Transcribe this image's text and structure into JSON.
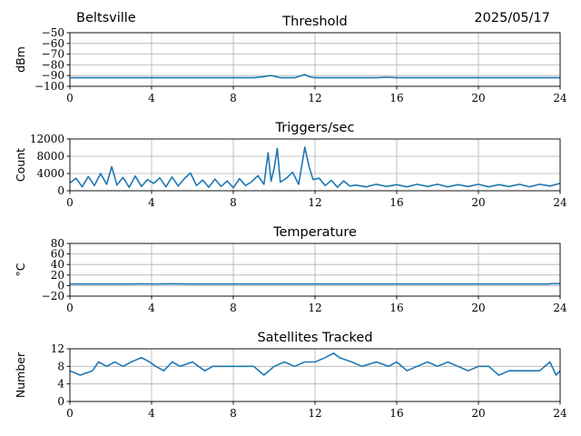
{
  "header": {
    "location": "Beltsville",
    "date": "2025/05/17"
  },
  "colors": {
    "line": "#1f77b4",
    "grid": "#b0b0b0",
    "axis": "#000000"
  },
  "chart_data": [
    {
      "type": "line",
      "title": "Threshold",
      "ylabel": "dBm",
      "xlabel": "",
      "xlim": [
        0,
        24
      ],
      "ylim": [
        -100,
        -50
      ],
      "xticks": [
        0,
        4,
        8,
        12,
        16,
        20,
        24
      ],
      "yticks": [
        -100,
        -90,
        -80,
        -70,
        -60,
        -50
      ],
      "grid": true,
      "series": [
        {
          "x": [
            0,
            1,
            2,
            3,
            4,
            5,
            6,
            7,
            8,
            9,
            9.5,
            9.8,
            10,
            10.3,
            10.8,
            11,
            11.5,
            11.7,
            12,
            12.5,
            13,
            14,
            15,
            15.5,
            16,
            17,
            18,
            19,
            20,
            21,
            22,
            23,
            24
          ],
          "y": [
            -92,
            -92,
            -92,
            -92,
            -92,
            -92,
            -92,
            -92,
            -92,
            -92,
            -91,
            -90,
            -90.5,
            -92,
            -92,
            -92,
            -89,
            -91,
            -92,
            -92,
            -92,
            -92,
            -92,
            -91.5,
            -92,
            -92,
            -92,
            -92,
            -92,
            -92,
            -92,
            -92,
            -92
          ]
        }
      ]
    },
    {
      "type": "line",
      "title": "Triggers/sec",
      "ylabel": "Count",
      "xlabel": "",
      "xlim": [
        0,
        24
      ],
      "ylim": [
        0,
        12000
      ],
      "xticks": [
        0,
        4,
        8,
        12,
        16,
        20,
        24
      ],
      "yticks": [
        0,
        4000,
        8000,
        12000
      ],
      "grid": true,
      "series": [
        {
          "x": [
            0,
            0.3,
            0.6,
            0.9,
            1.2,
            1.5,
            1.8,
            2.05,
            2.3,
            2.6,
            2.9,
            3.2,
            3.5,
            3.8,
            4.1,
            4.4,
            4.7,
            5.0,
            5.3,
            5.6,
            5.9,
            6.2,
            6.5,
            6.8,
            7.1,
            7.4,
            7.7,
            8.0,
            8.3,
            8.6,
            8.9,
            9.2,
            9.5,
            9.7,
            9.85,
            10.0,
            10.15,
            10.3,
            10.6,
            10.9,
            11.2,
            11.5,
            11.7,
            11.9,
            12.2,
            12.5,
            12.8,
            13.1,
            13.4,
            13.7,
            14,
            14.5,
            15,
            15.5,
            16,
            16.5,
            17,
            17.5,
            18,
            18.5,
            19,
            19.5,
            20,
            20.5,
            21,
            21.5,
            22,
            22.5,
            23,
            23.5,
            24
          ],
          "y": [
            1800,
            2900,
            900,
            3300,
            1200,
            4000,
            1500,
            5600,
            1300,
            3100,
            800,
            3400,
            1000,
            2600,
            1700,
            3000,
            900,
            3200,
            1100,
            2800,
            4100,
            1200,
            2500,
            800,
            2700,
            1000,
            2300,
            700,
            2800,
            1200,
            2100,
            3500,
            1500,
            8800,
            2200,
            5200,
            9800,
            2000,
            2900,
            4300,
            1500,
            10100,
            5700,
            2600,
            2900,
            1200,
            2400,
            800,
            2300,
            1100,
            1300,
            900,
            1500,
            1000,
            1400,
            900,
            1500,
            1000,
            1500,
            900,
            1400,
            1000,
            1500,
            900,
            1400,
            1000,
            1500,
            900,
            1500,
            1100,
            1700
          ]
        }
      ]
    },
    {
      "type": "line",
      "title": "Temperature",
      "ylabel": "°C",
      "xlabel": "",
      "xlim": [
        0,
        24
      ],
      "ylim": [
        -20,
        80
      ],
      "xticks": [
        0,
        4,
        8,
        12,
        16,
        20,
        24
      ],
      "yticks": [
        -20,
        0,
        20,
        40,
        60,
        80
      ],
      "grid": true,
      "series": [
        {
          "x": [
            0,
            1,
            2,
            3,
            3.5,
            4,
            5,
            6,
            8,
            10,
            12,
            14,
            16,
            18,
            20,
            22,
            23.4,
            23.6,
            24
          ],
          "y": [
            3,
            3,
            3,
            3,
            3.4,
            3,
            3.5,
            3,
            3,
            3,
            3,
            3,
            3,
            3,
            3,
            3,
            3,
            3.6,
            3.6
          ]
        }
      ]
    },
    {
      "type": "line",
      "title": "Satellites Tracked",
      "ylabel": "Number",
      "xlabel": "",
      "xlim": [
        0,
        24
      ],
      "ylim": [
        0,
        12
      ],
      "xticks": [
        0,
        4,
        8,
        12,
        16,
        20,
        24
      ],
      "yticks": [
        0,
        4,
        8,
        12
      ],
      "grid": true,
      "series": [
        {
          "x": [
            0,
            0.5,
            1.1,
            1.4,
            1.8,
            2.2,
            2.6,
            3.0,
            3.5,
            3.9,
            4.2,
            4.6,
            5.0,
            5.4,
            6.0,
            6.6,
            7.0,
            7.5,
            8.0,
            8.5,
            9.0,
            9.5,
            10.0,
            10.5,
            11.0,
            11.5,
            12.0,
            12.5,
            12.9,
            13.2,
            13.8,
            14.3,
            15.0,
            15.6,
            16.0,
            16.5,
            17.0,
            17.5,
            18.0,
            18.5,
            19.0,
            19.5,
            20.0,
            20.5,
            21.0,
            21.5,
            22.0,
            22.5,
            23.0,
            23.5,
            23.8,
            24
          ],
          "y": [
            7,
            6,
            7,
            9,
            8,
            9,
            8,
            9,
            10,
            9,
            8,
            7,
            9,
            8,
            9,
            7,
            8,
            8,
            8,
            8,
            8,
            6,
            8,
            9,
            8,
            9,
            9,
            10,
            11,
            10,
            9,
            8,
            9,
            8,
            9,
            7,
            8,
            9,
            8,
            9,
            8,
            7,
            8,
            8,
            6,
            7,
            7,
            7,
            7,
            9,
            6,
            7
          ]
        }
      ]
    }
  ]
}
